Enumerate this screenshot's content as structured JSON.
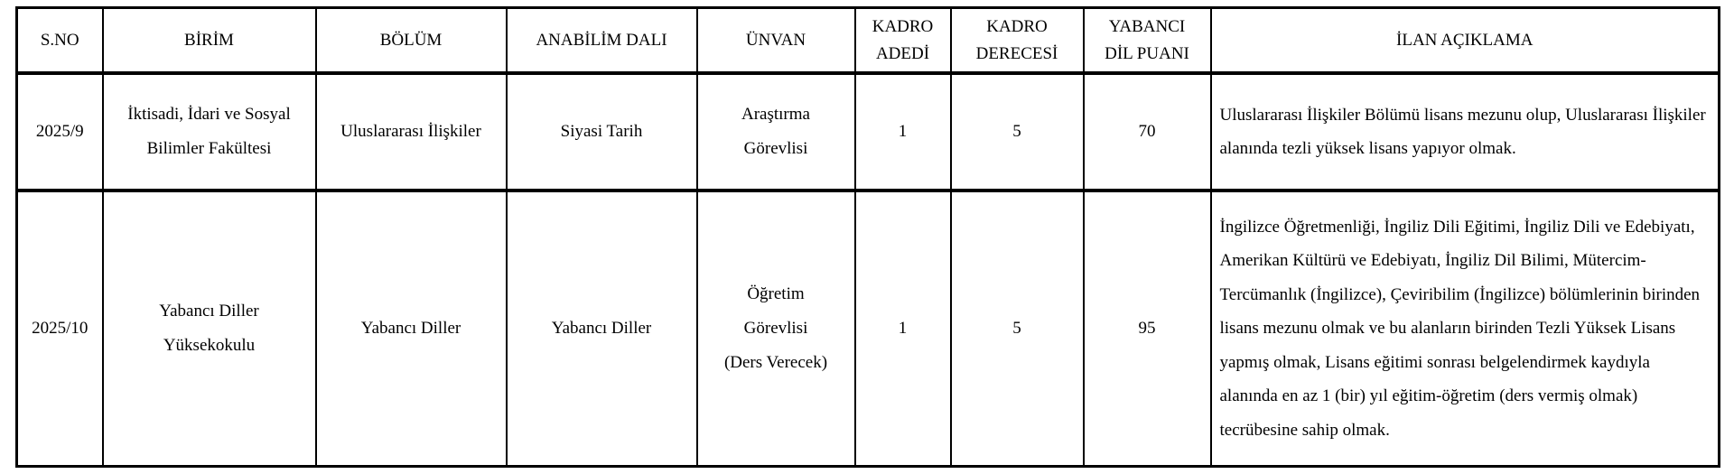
{
  "table": {
    "title_semantic": "Akademik kadro ilan tablosu",
    "colors": {
      "border": "#000000",
      "background": "#ffffff",
      "text": "#000000"
    },
    "headers": {
      "s_no": "S.NO",
      "birim": "BİRİM",
      "bolum": "BÖLÜM",
      "anabilim_dali": "ANABİLİM DALI",
      "unvan": "ÜNVAN",
      "kadro_adedi": "KADRO\nADEDİ",
      "kadro_derecesi": "KADRO\nDERECESİ",
      "yabanci_dil_puani": "YABANCI\nDİL PUANI",
      "ilan_aciklama": "İLAN AÇIKLAMA"
    },
    "rows": [
      {
        "s_no": "2025/9",
        "birim": "İktisadi, İdari ve Sosyal\nBilimler Fakültesi",
        "bolum": "Uluslararası İlişkiler",
        "anabilim_dali": "Siyasi Tarih",
        "unvan": "Araştırma\nGörevlisi",
        "kadro_adedi": "1",
        "kadro_derecesi": "5",
        "yabanci_dil_puani": "70",
        "ilan_aciklama": "Uluslararası İlişkiler Bölümü lisans mezunu olup, Uluslararası İlişkiler alanında tezli yüksek lisans yapıyor olmak."
      },
      {
        "s_no": "2025/10",
        "birim": "Yabancı Diller\nYüksekokulu",
        "bolum": "Yabancı Diller",
        "anabilim_dali": "Yabancı Diller",
        "unvan": "Öğretim\nGörevlisi\n(Ders Verecek)",
        "kadro_adedi": "1",
        "kadro_derecesi": "5",
        "yabanci_dil_puani": "95",
        "ilan_aciklama": "İngilizce Öğretmenliği, İngiliz Dili Eğitimi, İngiliz Dili ve Edebiyatı, Amerikan Kültürü ve Edebiyatı, İngiliz Dil Bilimi, Mütercim- Tercümanlık (İngilizce), Çeviribilim (İngilizce) bölümlerinin birinden lisans mezunu olmak ve bu alanların birinden Tezli Yüksek Lisans yapmış olmak, Lisans eğitimi sonrası belgelendirmek kaydıyla alanında en az 1 (bir) yıl eğitim-öğretim (ders vermiş olmak) tecrübesine sahip olmak."
      }
    ]
  }
}
